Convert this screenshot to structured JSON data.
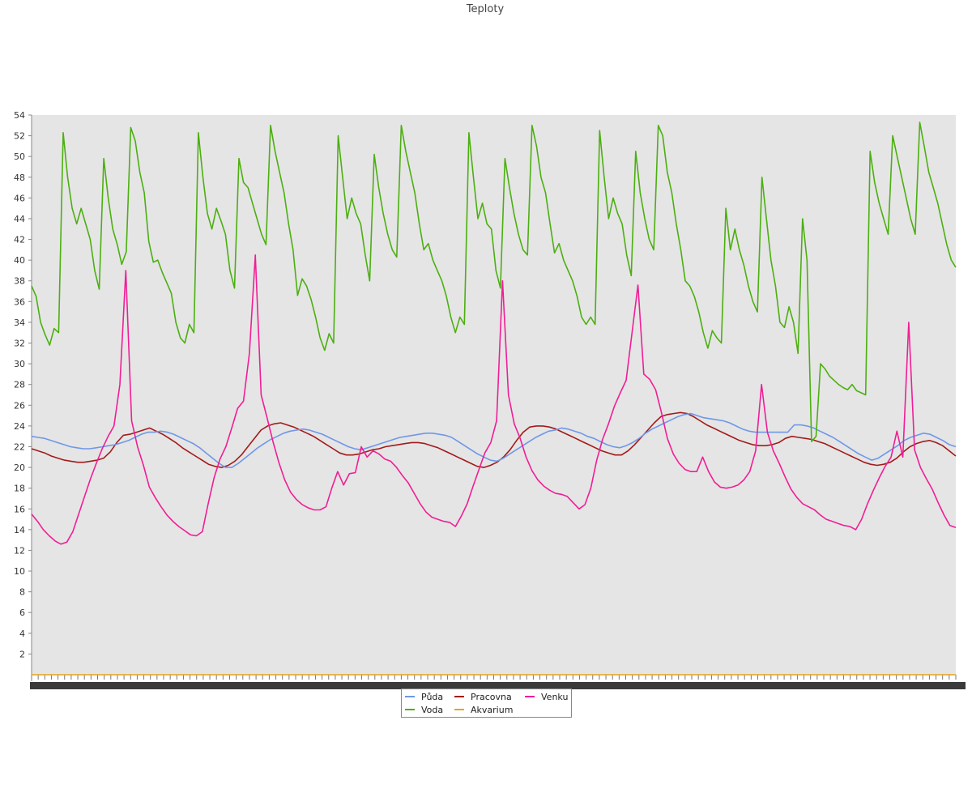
{
  "chart_data": {
    "type": "line",
    "title": "Teploty",
    "xlabel": "",
    "ylabel": "",
    "ylim": [
      0,
      54
    ],
    "y_ticks": [
      2,
      4,
      6,
      8,
      10,
      12,
      14,
      16,
      18,
      20,
      22,
      24,
      26,
      28,
      30,
      32,
      34,
      36,
      38,
      40,
      42,
      44,
      46,
      48,
      50,
      52,
      54
    ],
    "grid": false,
    "legend_position": "bottom",
    "background": "#e5e5e5",
    "x_tick_labels_legible": false,
    "x_count": 140,
    "series": [
      {
        "name": "Půda",
        "color": "#6f97e8",
        "values": [
          23.0,
          22.9,
          22.8,
          22.6,
          22.4,
          22.2,
          22.0,
          21.9,
          21.8,
          21.8,
          21.9,
          22.0,
          22.1,
          22.2,
          22.4,
          22.6,
          22.9,
          23.2,
          23.4,
          23.4,
          23.5,
          23.4,
          23.2,
          22.9,
          22.6,
          22.3,
          21.9,
          21.4,
          20.9,
          20.4,
          20.0,
          20.0,
          20.4,
          20.9,
          21.4,
          21.9,
          22.3,
          22.7,
          23.0,
          23.3,
          23.5,
          23.6,
          23.7,
          23.6,
          23.4,
          23.2,
          22.9,
          22.6,
          22.3,
          22.0,
          21.8,
          21.7,
          21.9,
          22.1,
          22.3,
          22.5,
          22.7,
          22.9,
          23.0,
          23.1,
          23.2,
          23.3,
          23.3,
          23.2,
          23.1,
          22.9,
          22.5,
          22.1,
          21.7,
          21.3,
          21.0,
          20.7,
          20.6,
          20.9,
          21.3,
          21.7,
          22.1,
          22.5,
          22.9,
          23.2,
          23.5,
          23.6,
          23.8,
          23.7,
          23.5,
          23.3,
          23.0,
          22.8,
          22.5,
          22.2,
          22.0,
          21.9,
          22.1,
          22.4,
          22.8,
          23.3,
          23.7,
          24.0,
          24.3,
          24.6,
          24.9,
          25.1,
          25.2,
          25.0,
          24.8,
          24.7,
          24.6,
          24.5,
          24.3,
          24.0,
          23.7,
          23.5,
          23.4,
          23.4,
          23.4,
          23.4,
          23.4,
          23.4,
          24.1,
          24.1,
          24.0,
          23.8,
          23.5,
          23.2,
          22.9,
          22.5,
          22.1,
          21.7,
          21.3,
          21.0,
          20.7,
          20.9,
          21.3,
          21.7,
          22.1,
          22.6,
          22.9,
          23.1,
          23.3,
          23.2,
          22.9,
          22.6,
          22.2,
          22.0
        ]
      },
      {
        "name": "Pracovna",
        "color": "#a31a1a",
        "values": [
          21.8,
          21.6,
          21.4,
          21.1,
          20.9,
          20.7,
          20.6,
          20.5,
          20.5,
          20.6,
          20.7,
          20.9,
          21.5,
          22.4,
          23.1,
          23.2,
          23.4,
          23.6,
          23.8,
          23.5,
          23.2,
          22.8,
          22.4,
          21.9,
          21.5,
          21.1,
          20.7,
          20.3,
          20.1,
          20.0,
          20.2,
          20.6,
          21.2,
          22.0,
          22.8,
          23.6,
          24.0,
          24.2,
          24.3,
          24.1,
          23.9,
          23.6,
          23.3,
          23.0,
          22.6,
          22.2,
          21.8,
          21.4,
          21.2,
          21.2,
          21.3,
          21.5,
          21.7,
          21.8,
          22.0,
          22.1,
          22.2,
          22.3,
          22.4,
          22.4,
          22.3,
          22.1,
          21.9,
          21.6,
          21.3,
          21.0,
          20.7,
          20.4,
          20.1,
          20.0,
          20.2,
          20.5,
          21.0,
          21.7,
          22.6,
          23.4,
          23.9,
          24.0,
          24.0,
          23.9,
          23.7,
          23.4,
          23.1,
          22.8,
          22.5,
          22.2,
          21.9,
          21.6,
          21.4,
          21.2,
          21.2,
          21.6,
          22.2,
          22.9,
          23.6,
          24.3,
          24.9,
          25.1,
          25.2,
          25.3,
          25.2,
          24.9,
          24.5,
          24.1,
          23.8,
          23.5,
          23.2,
          22.9,
          22.6,
          22.4,
          22.2,
          22.1,
          22.1,
          22.2,
          22.4,
          22.8,
          23.0,
          22.9,
          22.8,
          22.7,
          22.5,
          22.3,
          22.0,
          21.7,
          21.4,
          21.1,
          20.8,
          20.5,
          20.3,
          20.2,
          20.3,
          20.5,
          20.9,
          21.5,
          22.0,
          22.3,
          22.5,
          22.6,
          22.4,
          22.1,
          21.6,
          21.1
        ]
      },
      {
        "name": "Venku",
        "color": "#f01e96",
        "values": [
          15.5,
          14.8,
          14.0,
          13.4,
          12.9,
          12.6,
          12.8,
          13.8,
          15.5,
          17.2,
          18.9,
          20.4,
          21.8,
          23.0,
          24.0,
          28.0,
          39.0,
          24.5,
          22.0,
          20.2,
          18.1,
          17.1,
          16.2,
          15.4,
          14.8,
          14.3,
          13.9,
          13.5,
          13.4,
          13.8,
          16.5,
          19.0,
          20.8,
          22.0,
          23.8,
          25.7,
          26.4,
          31.0,
          40.5,
          27.0,
          24.8,
          22.5,
          20.5,
          18.8,
          17.6,
          16.9,
          16.4,
          16.1,
          15.9,
          15.9,
          16.2,
          18.0,
          19.6,
          18.3,
          19.4,
          19.5,
          22.0,
          21.0,
          21.6,
          21.3,
          20.8,
          20.6,
          20.0,
          19.2,
          18.5,
          17.5,
          16.5,
          15.7,
          15.2,
          15.0,
          14.8,
          14.7,
          14.3,
          15.3,
          16.5,
          18.2,
          19.8,
          21.4,
          22.4,
          24.5,
          38.0,
          27.0,
          24.2,
          22.8,
          21.0,
          19.7,
          18.8,
          18.2,
          17.8,
          17.5,
          17.4,
          17.2,
          16.6,
          16.0,
          16.4,
          18.0,
          20.7,
          22.7,
          24.2,
          25.9,
          27.2,
          28.4,
          33.0,
          37.6,
          29.0,
          28.5,
          27.5,
          25.3,
          22.8,
          21.3,
          20.4,
          19.8,
          19.6,
          19.6,
          21.0,
          19.6,
          18.6,
          18.1,
          18.0,
          18.1,
          18.3,
          18.8,
          19.6,
          21.6,
          28.0,
          23.4,
          21.6,
          20.4,
          19.1,
          17.9,
          17.1,
          16.5,
          16.2,
          15.9,
          15.4,
          15.0,
          14.8,
          14.6,
          14.4,
          14.3,
          14.0,
          15.0,
          16.5,
          17.8,
          19.0,
          20.1,
          21.0,
          23.5,
          21.0,
          34.0,
          21.7,
          20.0,
          18.9,
          17.9,
          16.6,
          15.4,
          14.4,
          14.2
        ]
      },
      {
        "name": "Voda",
        "color": "#4caf10",
        "values": [
          37.5,
          36.5,
          34.0,
          32.8,
          31.8,
          33.4,
          33.0,
          52.3,
          48.0,
          45.0,
          43.5,
          45.0,
          43.5,
          42.0,
          39.0,
          37.2,
          49.8,
          46.0,
          43.0,
          41.5,
          39.6,
          40.8,
          52.8,
          51.5,
          48.5,
          46.5,
          41.8,
          39.8,
          40.0,
          38.8,
          37.8,
          36.8,
          34.0,
          32.5,
          32.0,
          33.8,
          33.0,
          52.3,
          48.0,
          44.5,
          43.0,
          45.0,
          43.8,
          42.5,
          39.0,
          37.3,
          49.8,
          47.5,
          47.0,
          45.5,
          44.0,
          42.5,
          41.5,
          53.0,
          50.5,
          48.5,
          46.5,
          43.5,
          41.0,
          36.6,
          38.2,
          37.5,
          36.2,
          34.5,
          32.5,
          31.3,
          32.9,
          32.0,
          52.0,
          48.0,
          44.0,
          46.0,
          44.5,
          43.5,
          40.5,
          38.0,
          50.2,
          47.0,
          44.5,
          42.5,
          41.0,
          40.3,
          53.0,
          50.5,
          48.5,
          46.5,
          43.5,
          41.0,
          41.6,
          40.0,
          39.0,
          38.0,
          36.5,
          34.5,
          33.0,
          34.5,
          33.8,
          52.3,
          48.0,
          44.0,
          45.5,
          43.5,
          43.0,
          39.0,
          37.3,
          49.8,
          47.0,
          44.5,
          42.5,
          41.0,
          40.5,
          53.0,
          51.0,
          48.0,
          46.5,
          43.5,
          40.7,
          41.6,
          40.0,
          39.0,
          38.0,
          36.5,
          34.5,
          33.8,
          34.5,
          33.8,
          52.5,
          48.0,
          44.0,
          46.0,
          44.5,
          43.5,
          40.5,
          38.5,
          50.5,
          46.5,
          44.0,
          42.0,
          41.0,
          53.0,
          52.0,
          48.5,
          46.5,
          43.5,
          41.0,
          38.0,
          37.5,
          36.5,
          35.0,
          33.0,
          31.5,
          33.2,
          32.5,
          32.0,
          45.0,
          41.0,
          43.0,
          41.0,
          39.5,
          37.5,
          36.0,
          35.0,
          48.0,
          44.0,
          40.0,
          37.5,
          34.0,
          33.5,
          35.5,
          34.0,
          31.0,
          44.0,
          40.0,
          22.5,
          23.0,
          30.0,
          29.5,
          28.8,
          28.4,
          28.0,
          27.7,
          27.5,
          28.0,
          27.4,
          27.2,
          27.0,
          50.5,
          47.5,
          45.5,
          44.0,
          42.5,
          52.0,
          50.0,
          48.0,
          46.0,
          44.0,
          42.5,
          53.3,
          51.0,
          48.5,
          47.0,
          45.5,
          43.5,
          41.5,
          40.0,
          39.3
        ]
      },
      {
        "name": "Akvarium",
        "color": "#e8a21c",
        "values": [
          0,
          0
        ]
      }
    ]
  }
}
